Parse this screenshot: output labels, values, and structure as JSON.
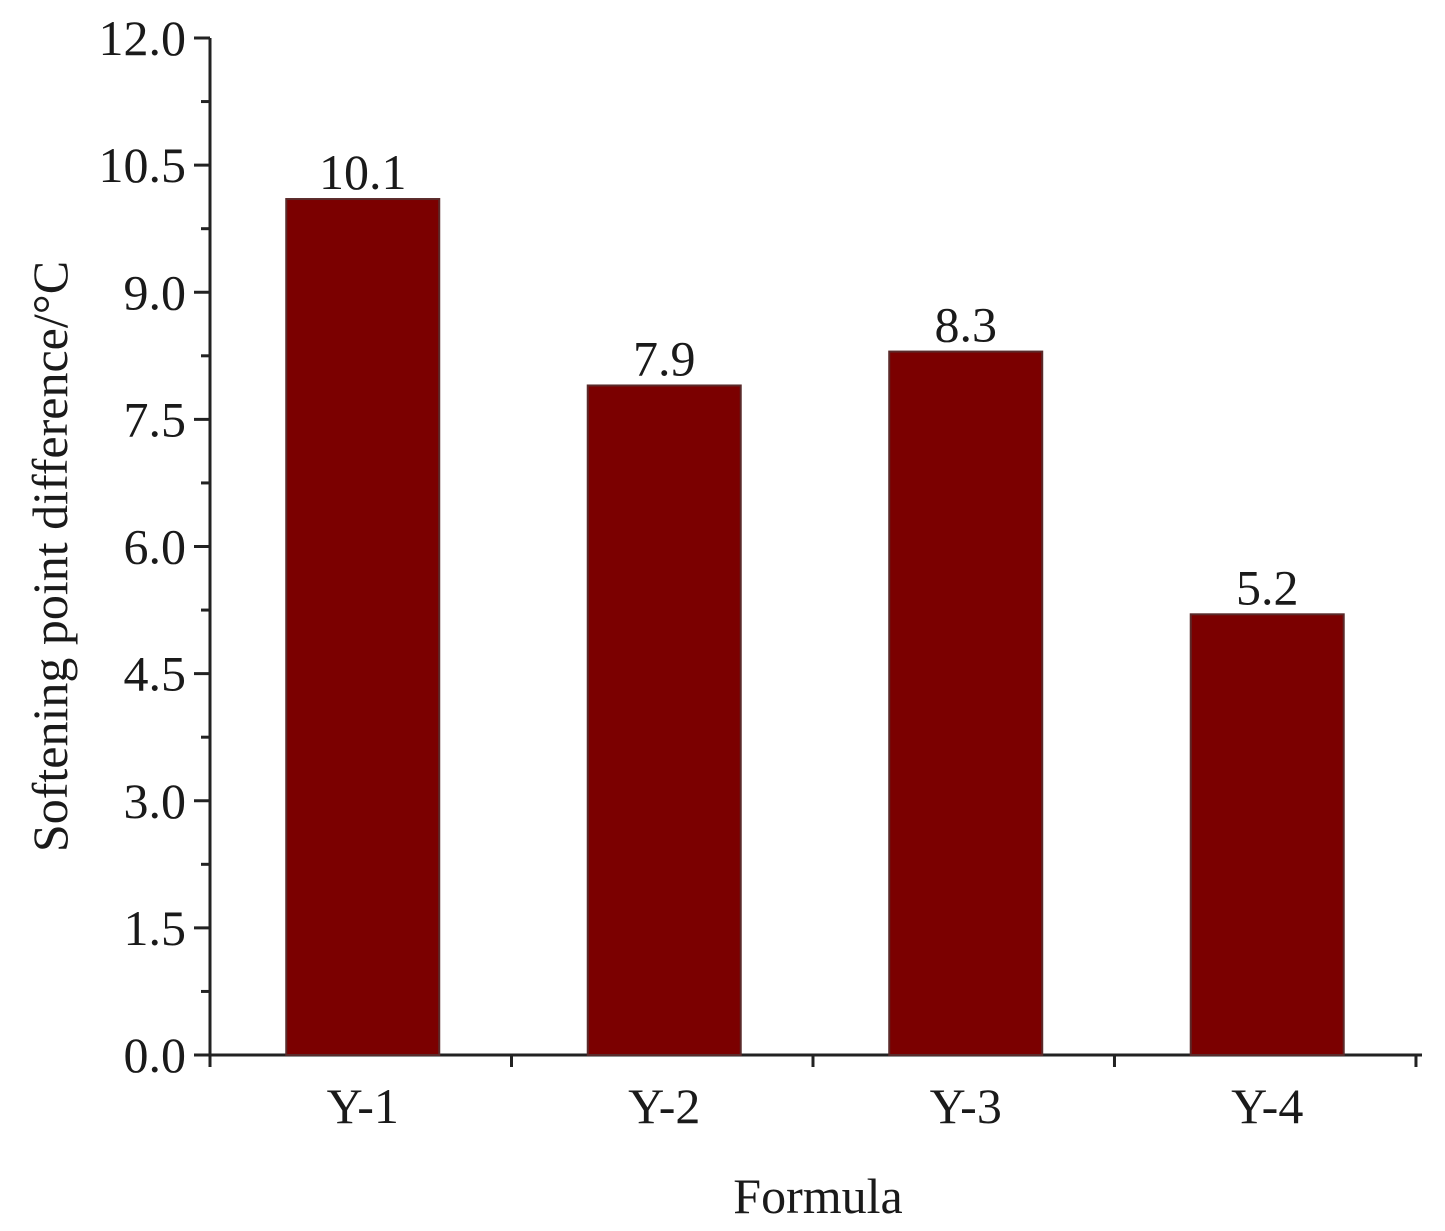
{
  "chart_data": {
    "type": "bar",
    "categories": [
      "Y-1",
      "Y-2",
      "Y-3",
      "Y-4"
    ],
    "values": [
      10.1,
      7.9,
      8.3,
      5.2
    ],
    "data_labels": [
      "10.1",
      "7.9",
      "8.3",
      "5.2"
    ],
    "title": "",
    "xlabel": "Formula",
    "ylabel": "Softening point difference/°C",
    "ylim": [
      0,
      12
    ],
    "yticks": [
      "0.0",
      "1.5",
      "3.0",
      "4.5",
      "6.0",
      "7.5",
      "9.0",
      "10.5",
      "12.0"
    ],
    "grid": false,
    "legend": "none",
    "bar_color": "#7b0000"
  }
}
